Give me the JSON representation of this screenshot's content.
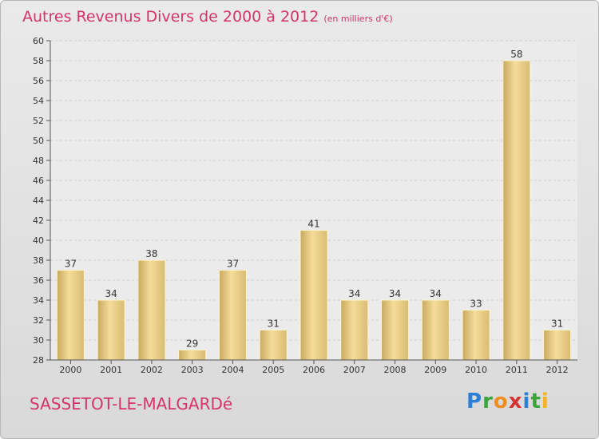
{
  "header": {
    "title": "Autres Revenus Divers de 2000 à 2012",
    "unit": "(en milliers d'€)"
  },
  "footer": {
    "commune": "SASSETOT-LE-MALGARDé",
    "logo_letters": [
      {
        "char": "P",
        "color": "#2b7fd4"
      },
      {
        "char": "r",
        "color": "#3aa63a"
      },
      {
        "char": "o",
        "color": "#f28c1e"
      },
      {
        "char": "x",
        "color": "#d63333"
      },
      {
        "char": "i",
        "color": "#2b7fd4"
      },
      {
        "char": "t",
        "color": "#3aa63a"
      },
      {
        "char": "i",
        "color": "#f2b31e"
      }
    ]
  },
  "colors": {
    "title": "#d6336c",
    "bar_light": "#f5dc9a",
    "bar_dark": "#c9a95e"
  },
  "chart_data": {
    "type": "bar",
    "title": "Autres Revenus Divers de 2000 à 2012",
    "subtitle": "(en milliers d'€)",
    "categories": [
      "2000",
      "2001",
      "2002",
      "2003",
      "2004",
      "2005",
      "2006",
      "2007",
      "2008",
      "2009",
      "2010",
      "2011",
      "2012"
    ],
    "values": [
      37,
      34,
      38,
      29,
      37,
      31,
      41,
      34,
      34,
      34,
      33,
      58,
      31
    ],
    "ylim": [
      28,
      60
    ],
    "ytick_step": 2,
    "grid": true
  }
}
